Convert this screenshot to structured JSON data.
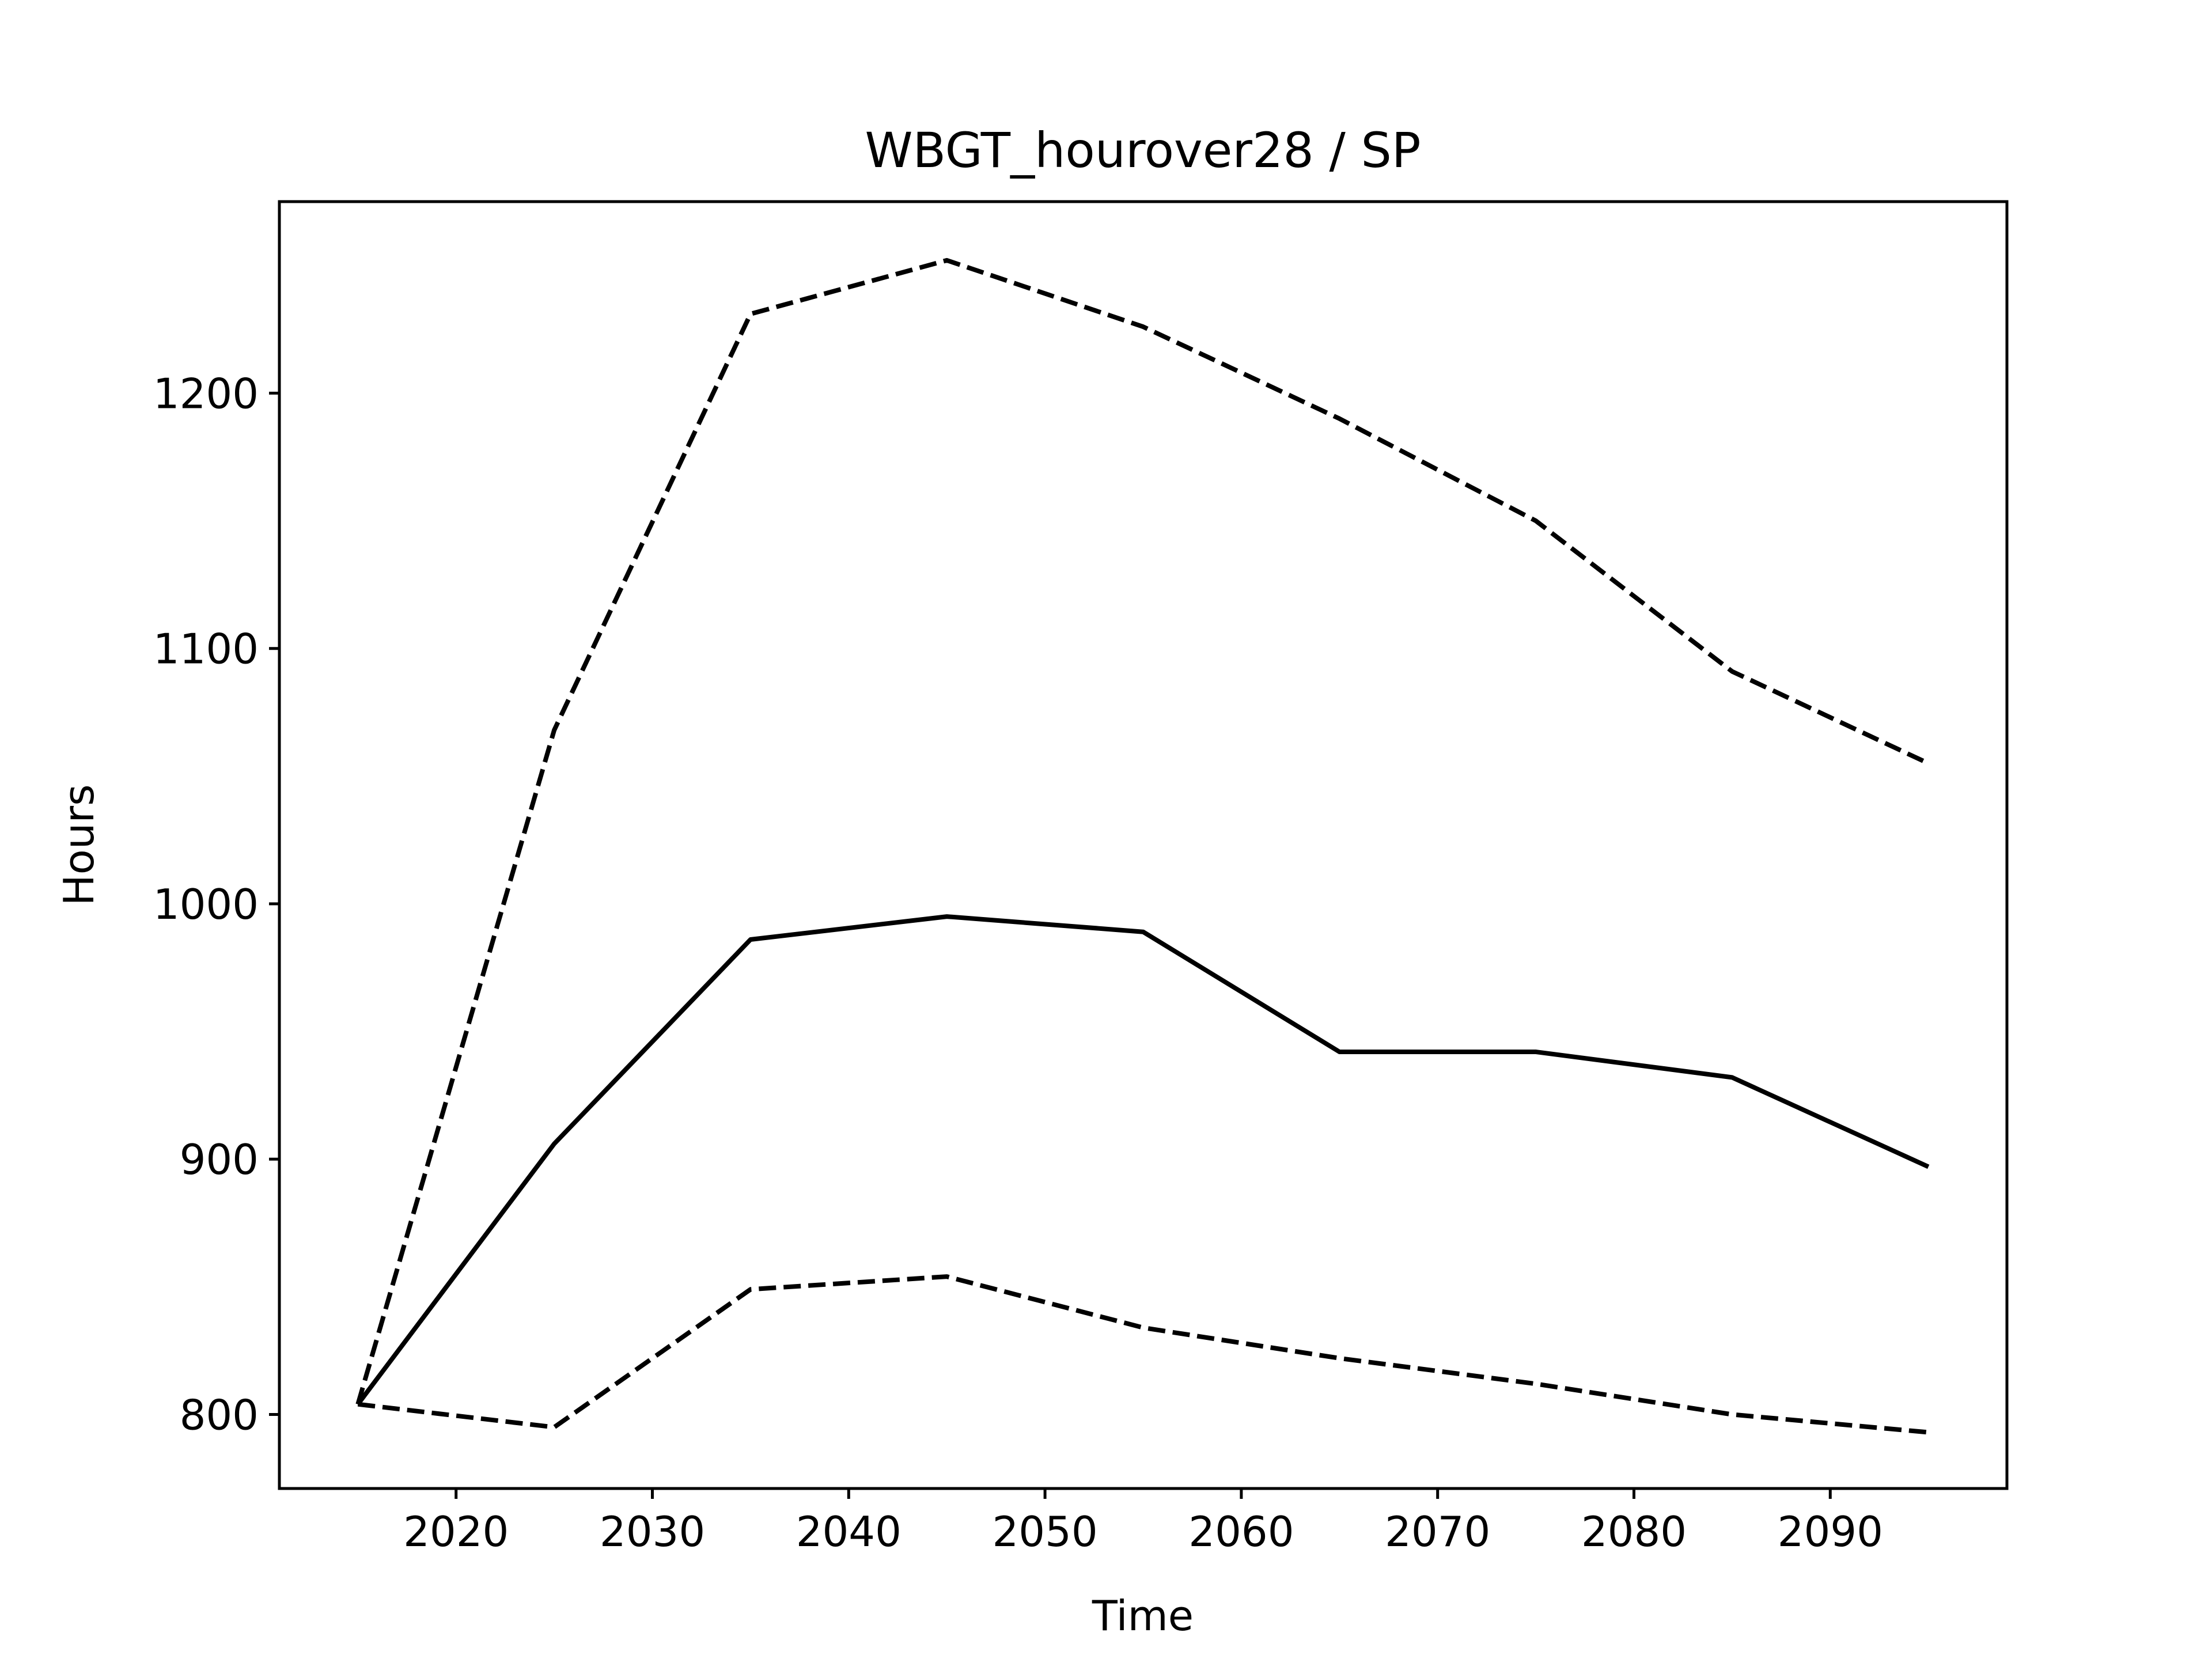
{
  "chart_data": {
    "type": "line",
    "title": "WBGT_hourover28 / SP",
    "xlabel": "Time",
    "ylabel": "Hours",
    "x": [
      2015,
      2025,
      2035,
      2045,
      2055,
      2065,
      2075,
      2085,
      2095
    ],
    "xticks": [
      2020,
      2030,
      2040,
      2050,
      2060,
      2070,
      2080,
      2090
    ],
    "yticks": [
      800,
      900,
      1000,
      1100,
      1200
    ],
    "xlim": [
      2011,
      2099
    ],
    "ylim": [
      771,
      1275
    ],
    "grid": false,
    "series": [
      {
        "style": "dashed",
        "color": "#000000",
        "values": [
          804,
          1068,
          1231,
          1252,
          1226,
          1190,
          1150,
          1091,
          1055
        ]
      },
      {
        "style": "solid",
        "color": "#000000",
        "values": [
          804,
          906,
          986,
          995,
          989,
          942,
          942,
          932,
          897
        ]
      },
      {
        "style": "dashed",
        "color": "#000000",
        "values": [
          804,
          795,
          849,
          854,
          834,
          822,
          812,
          800,
          793
        ]
      }
    ]
  }
}
